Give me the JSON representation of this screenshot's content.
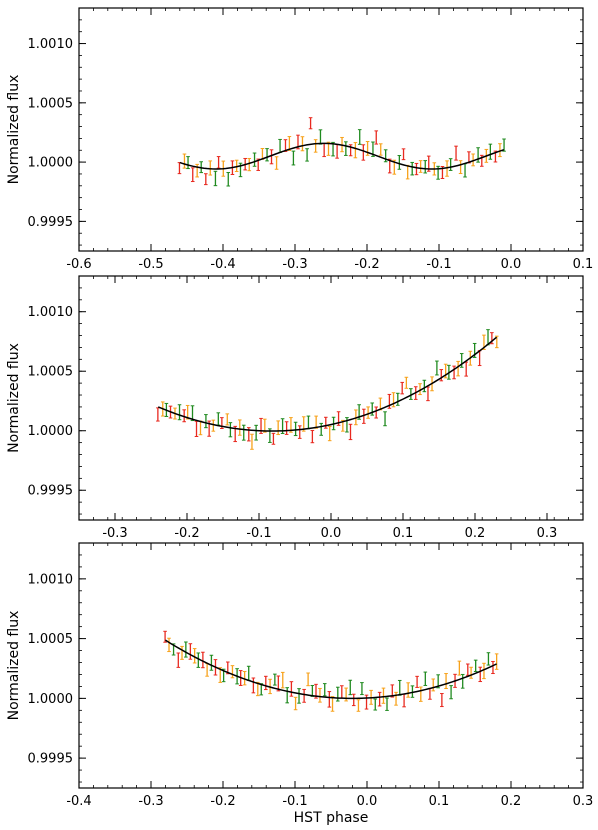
{
  "figure": {
    "xlabel": "HST phase"
  },
  "colors": {
    "red": "#e8291f",
    "orange": "#f7a21b",
    "green": "#1f8a1f",
    "model": "#000000"
  },
  "chart_data": [
    {
      "type": "scatter",
      "ylabel": "Normalized flux",
      "xlim": [
        -0.6,
        0.1
      ],
      "ylim": [
        0.99925,
        1.0013
      ],
      "xticks": [
        "-0.6",
        "-0.5",
        "-0.4",
        "-0.3",
        "-0.2",
        "-0.1",
        "0.0",
        "0.1"
      ],
      "xtick_values": [
        -0.6,
        -0.5,
        -0.4,
        -0.3,
        -0.2,
        -0.1,
        0.0,
        0.1
      ],
      "yticks": [
        "0.9995",
        "1.0000",
        "1.0005",
        "1.0010"
      ],
      "ytick_values": [
        0.9995,
        1.0,
        1.0005,
        1.001
      ],
      "show_xlabel": false,
      "x_start": -0.46,
      "x_end": -0.01,
      "n_points": 75,
      "model": {
        "amp": 0.00012,
        "offset": 1.00005,
        "period": 0.3,
        "phase0": -0.26
      },
      "seed": 11,
      "noise": 5e-05
    },
    {
      "type": "scatter",
      "ylabel": "Normalized flux",
      "xlim": [
        -0.35,
        0.35
      ],
      "ylim": [
        0.99925,
        1.0013
      ],
      "xticks": [
        "-0.3",
        "-0.2",
        "-0.1",
        "0.0",
        "0.1",
        "0.2",
        "0.3"
      ],
      "xtick_values": [
        -0.3,
        -0.2,
        -0.1,
        0.0,
        0.1,
        0.2,
        0.3
      ],
      "yticks": [
        "0.9995",
        "1.0000",
        "1.0005",
        "1.0010"
      ],
      "ytick_values": [
        0.9995,
        1.0,
        1.0005,
        1.001
      ],
      "show_xlabel": false,
      "x_start": -0.24,
      "x_end": 0.23,
      "n_points": 80,
      "model": {
        "quad": 0.0081,
        "lin": 0.0003,
        "const": 1.0,
        "xmin": -0.08
      },
      "seed": 23,
      "noise": 5e-05
    },
    {
      "type": "scatter",
      "ylabel": "Normalized flux",
      "xlim": [
        -0.4,
        0.3
      ],
      "ylim": [
        0.99925,
        1.0013
      ],
      "xticks": [
        "-0.4",
        "-0.3",
        "-0.2",
        "-0.1",
        "0.0",
        "0.1",
        "0.2",
        "0.3"
      ],
      "xtick_values": [
        -0.4,
        -0.3,
        -0.2,
        -0.1,
        0.0,
        0.1,
        0.2,
        0.3
      ],
      "yticks": [
        "0.9995",
        "1.0000",
        "1.0005",
        "1.0010"
      ],
      "ytick_values": [
        0.9995,
        1.0,
        1.0005,
        1.001
      ],
      "show_xlabel": true,
      "x_start": -0.28,
      "x_end": 0.18,
      "n_points": 80,
      "model": {
        "quad": 0.0072,
        "quart": 0.055,
        "const": 1.0,
        "xmin": -0.02
      },
      "seed": 37,
      "noise": 5e-05
    }
  ]
}
